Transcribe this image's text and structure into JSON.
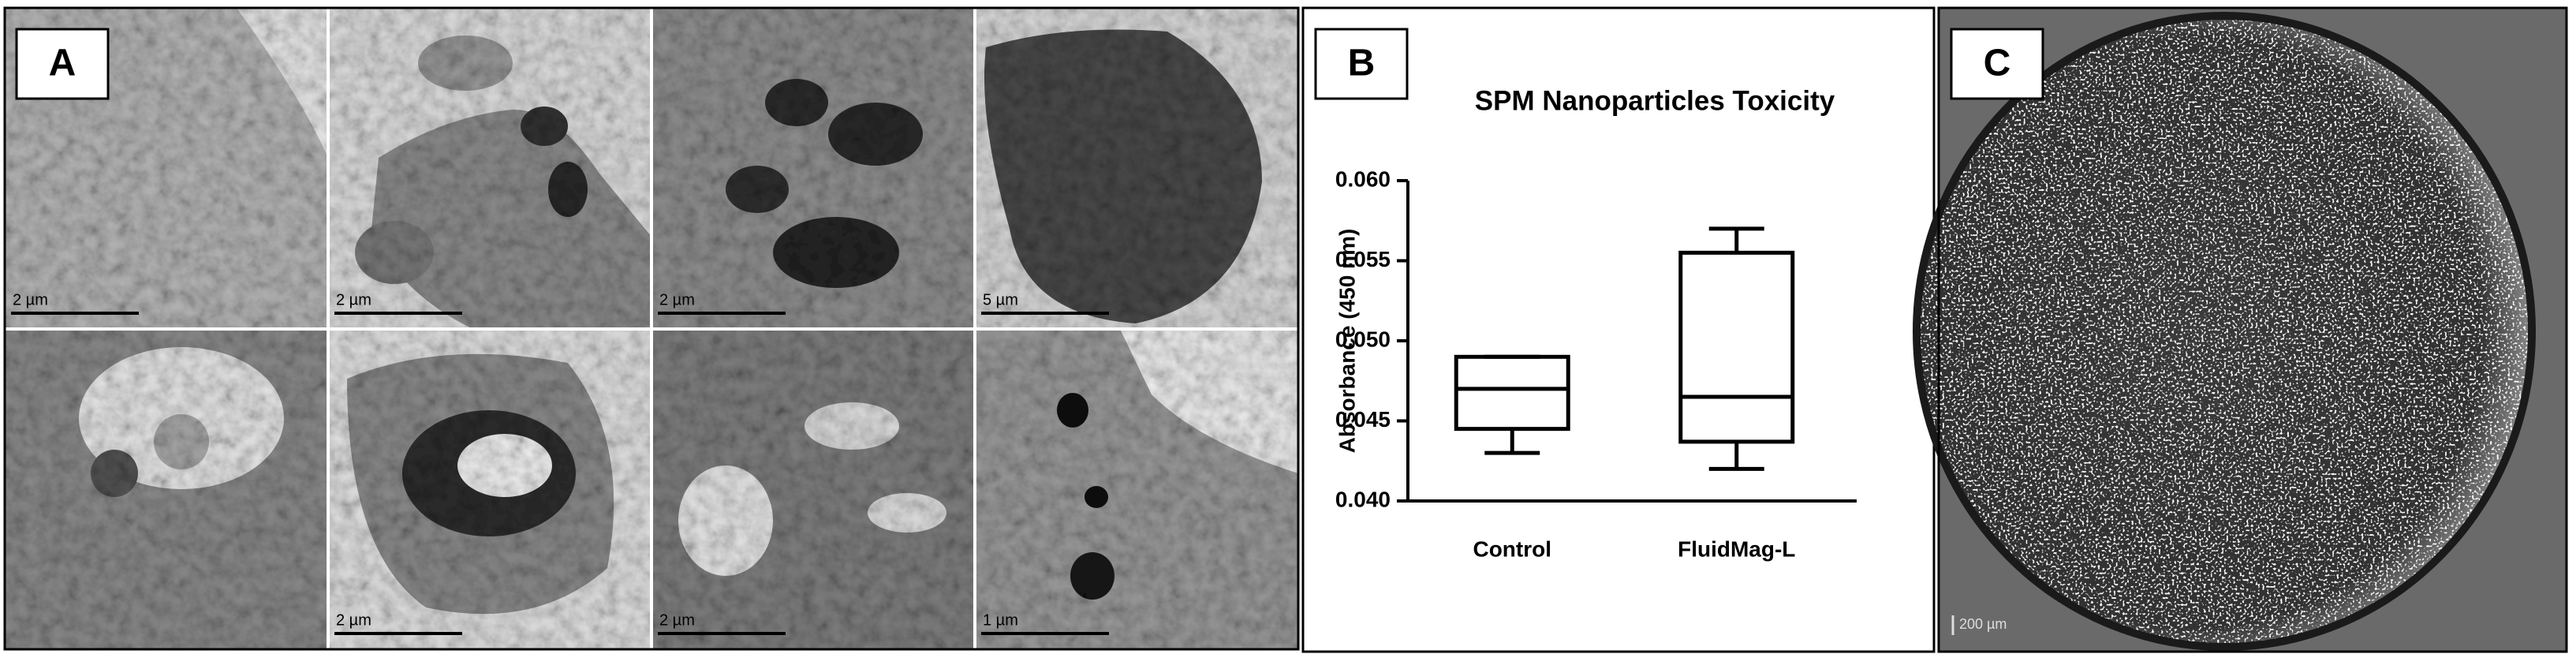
{
  "panel_a": {
    "label": "A",
    "scale_bars": [
      "2 µm",
      "2 µm",
      "2 µm",
      "5 µm",
      "2 µm",
      "2 µm",
      "1 µm"
    ]
  },
  "panel_b_label": "B",
  "chart_data": {
    "type": "box",
    "title": "SPM Nanoparticles Toxicity",
    "y_label": "Absorbance (450 nm)",
    "categories": [
      "Control",
      "FluidMag-L"
    ],
    "min": [
      0.043,
      0.042
    ],
    "q1": [
      0.0445,
      0.0437
    ],
    "median": [
      0.047,
      0.0465
    ],
    "q3": [
      0.049,
      0.0555
    ],
    "max": [
      0.049,
      0.057
    ],
    "color": "#000000",
    "ylim": [
      0.04,
      0.06
    ],
    "yticks": [
      {
        "value": 0.04,
        "label": "0.040"
      },
      {
        "value": 0.045,
        "label": "0.045"
      },
      {
        "value": 0.05,
        "label": "0.050"
      },
      {
        "value": 0.055,
        "label": "0.055"
      },
      {
        "value": 0.06,
        "label": "0.060"
      }
    ]
  },
  "panel_c": {
    "label": "C",
    "scale_bar": "200 µm"
  }
}
